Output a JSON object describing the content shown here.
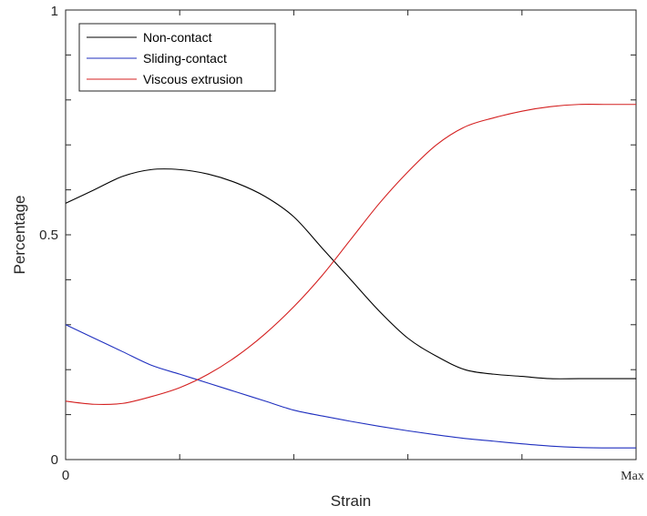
{
  "chart_data": {
    "type": "line",
    "title": "",
    "xlabel": "Strain",
    "ylabel": "Percentage",
    "x_tick_labels": {
      "start": "0",
      "end": "Max"
    },
    "y_ticks": [
      {
        "value": 0,
        "label": "0"
      },
      {
        "value": 0.5,
        "label": "0.5"
      },
      {
        "value": 1,
        "label": "1"
      }
    ],
    "xlim": [
      0,
      1
    ],
    "ylim": [
      0,
      1
    ],
    "grid": false,
    "legend_position": "top-left",
    "x": [
      0.0,
      0.05,
      0.1,
      0.15,
      0.2,
      0.25,
      0.3,
      0.35,
      0.4,
      0.45,
      0.5,
      0.55,
      0.6,
      0.65,
      0.7,
      0.75,
      0.8,
      0.85,
      0.9,
      0.95,
      1.0
    ],
    "series": [
      {
        "name": "Non-contact",
        "color": "#000000",
        "values": [
          0.57,
          0.6,
          0.63,
          0.645,
          0.645,
          0.635,
          0.615,
          0.585,
          0.54,
          0.47,
          0.4,
          0.33,
          0.27,
          0.23,
          0.2,
          0.19,
          0.185,
          0.18,
          0.18,
          0.18,
          0.18
        ]
      },
      {
        "name": "Sliding-contact",
        "color": "#1f2fbf",
        "values": [
          0.3,
          0.27,
          0.24,
          0.21,
          0.19,
          0.17,
          0.15,
          0.13,
          0.11,
          0.097,
          0.085,
          0.074,
          0.064,
          0.055,
          0.047,
          0.041,
          0.035,
          0.03,
          0.027,
          0.026,
          0.026
        ]
      },
      {
        "name": "Viscous extrusion",
        "color": "#d42020",
        "values": [
          0.13,
          0.123,
          0.125,
          0.14,
          0.16,
          0.19,
          0.23,
          0.28,
          0.34,
          0.41,
          0.49,
          0.57,
          0.64,
          0.7,
          0.74,
          0.76,
          0.775,
          0.785,
          0.79,
          0.79,
          0.79
        ]
      }
    ]
  }
}
